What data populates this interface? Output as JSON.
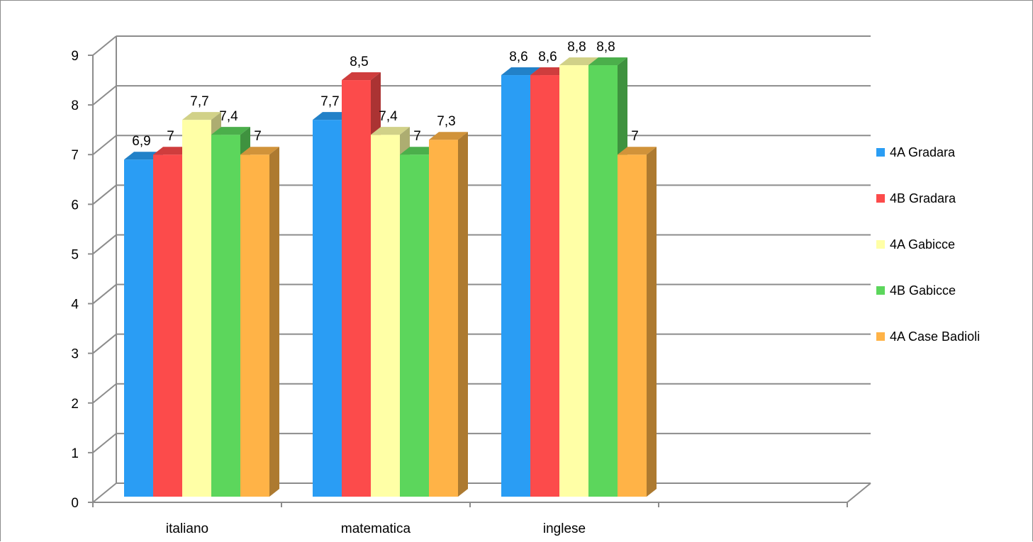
{
  "chart_data": {
    "type": "bar",
    "style": "3d-clustered-column",
    "title": "",
    "xlabel": "",
    "ylabel": "",
    "ylim": [
      0,
      9
    ],
    "yticks": [
      "0",
      "1",
      "2",
      "3",
      "4",
      "5",
      "6",
      "7",
      "8",
      "9"
    ],
    "grid": true,
    "legend_position": "right",
    "categories": [
      "italiano",
      "matematica",
      "inglese"
    ],
    "series": [
      {
        "name": "4A Gradara",
        "color": "#2a9df4",
        "values": [
          6.9,
          7.7,
          8.6
        ],
        "labels": [
          "6,9",
          "7,7",
          "8,6"
        ]
      },
      {
        "name": "4B Gradara",
        "color": "#fc4b4b",
        "values": [
          7,
          8.5,
          8.6
        ],
        "labels": [
          "7",
          "8,5",
          "8,6"
        ]
      },
      {
        "name": "4A Gabicce",
        "color": "#ffffa6",
        "values": [
          7.7,
          7.4,
          8.8
        ],
        "labels": [
          "7,7",
          "7,4",
          "8,8"
        ]
      },
      {
        "name": "4B Gabicce",
        "color": "#5cd65c",
        "values": [
          7.4,
          7,
          8.8
        ],
        "labels": [
          "7,4",
          "7",
          "8,8"
        ]
      },
      {
        "name": "4A Case Badioli",
        "color": "#ffb347",
        "values": [
          7,
          7.3,
          7
        ],
        "labels": [
          "7",
          "7,3",
          "7"
        ]
      }
    ]
  }
}
